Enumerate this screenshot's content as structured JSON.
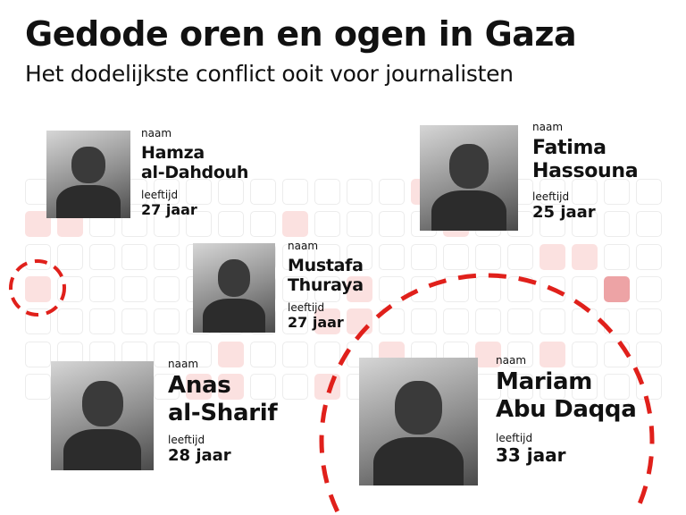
{
  "header": {
    "title": "Gedode oren en ogen in Gaza",
    "subtitle": "Het dodelijkste conflict ooit voor journalisten"
  },
  "labels": {
    "name": "naam",
    "age": "leeftijd"
  },
  "journalists": [
    {
      "first": "Hamza",
      "last": "al-Dahdouh",
      "age": "27 jaar"
    },
    {
      "first": "Fatima",
      "last": "Hassouna",
      "age": "25 jaar"
    },
    {
      "first": "Mustafa",
      "last": "Thuraya",
      "age": "27 jaar"
    },
    {
      "first": "Anas",
      "last": "al-Sharif",
      "age": "28 jaar"
    },
    {
      "first": "Mariam",
      "last": "Abu Daqqa",
      "age": "33 jaar"
    }
  ],
  "colors": {
    "accent": "#e0201b",
    "cell_light": "#fbe1e0",
    "cell_dark": "#eda3a5"
  },
  "grid": {
    "rows": 7,
    "cols": 20,
    "highlighted": [
      [
        0,
        12,
        "l"
      ],
      [
        1,
        0,
        "l"
      ],
      [
        1,
        1,
        "l"
      ],
      [
        1,
        8,
        "l"
      ],
      [
        1,
        13,
        "l"
      ],
      [
        2,
        16,
        "l"
      ],
      [
        2,
        17,
        "l"
      ],
      [
        3,
        0,
        "l"
      ],
      [
        3,
        10,
        "l"
      ],
      [
        3,
        18,
        "d"
      ],
      [
        4,
        9,
        "l"
      ],
      [
        4,
        10,
        "l"
      ],
      [
        5,
        6,
        "l"
      ],
      [
        5,
        11,
        "l"
      ],
      [
        5,
        14,
        "l"
      ],
      [
        5,
        16,
        "l"
      ],
      [
        6,
        5,
        "l"
      ],
      [
        6,
        6,
        "l"
      ],
      [
        6,
        9,
        "l"
      ]
    ]
  }
}
